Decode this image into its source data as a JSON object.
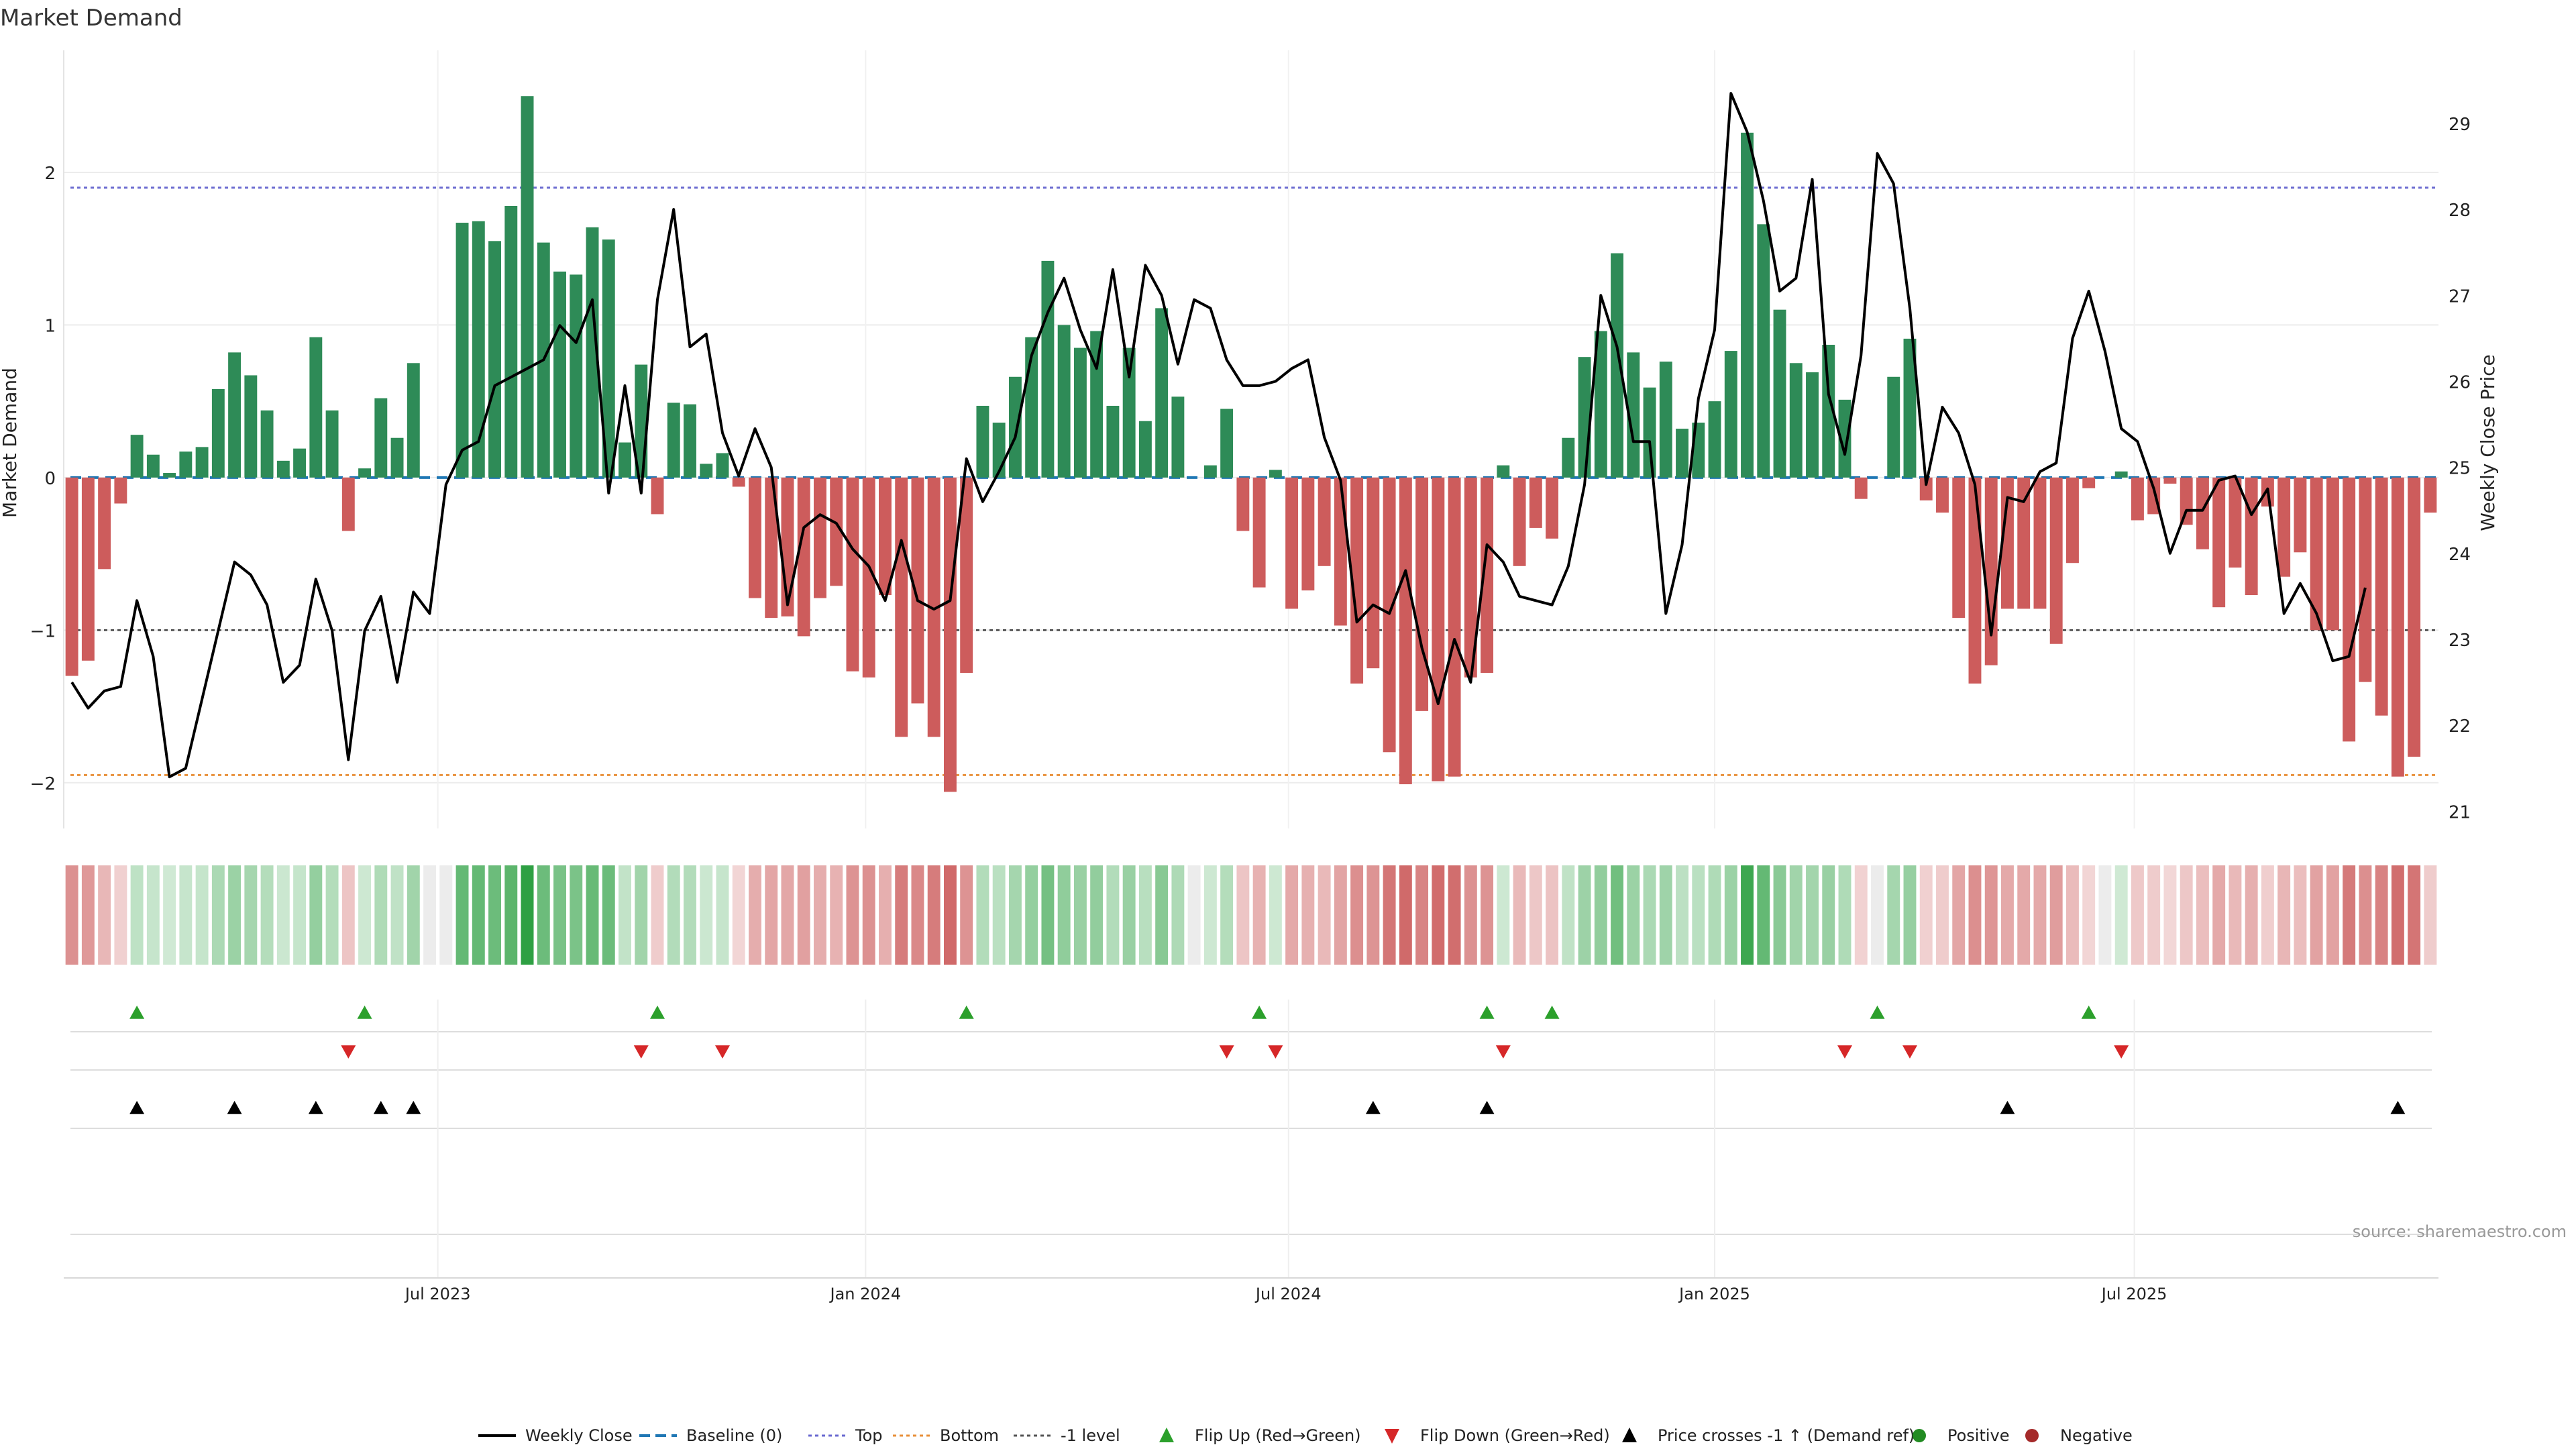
{
  "chart_data": {
    "type": "bar",
    "title": "Market Demand",
    "ylabel": "Market Demand",
    "y2label": "Weekly Close Price",
    "ylim": [
      -2.3,
      2.8
    ],
    "y2lim": [
      20.8,
      29.85
    ],
    "yticks": [
      2,
      1,
      0,
      -1,
      -2
    ],
    "yticklabels": [
      "2",
      "1",
      "0",
      "−1",
      "−2"
    ],
    "y2ticks": [
      29,
      28,
      27,
      26,
      25,
      24,
      23,
      22,
      21
    ],
    "xticks": [
      {
        "label": "Jul 2023",
        "index": 22.5
      },
      {
        "label": "Jan 2024",
        "index": 48.8
      },
      {
        "label": "Jul 2024",
        "index": 74.8
      },
      {
        "label": "Jan 2025",
        "index": 101.0
      },
      {
        "label": "Jul 2025",
        "index": 126.8
      }
    ],
    "levels": {
      "top": 1.9,
      "bottom": -1.95,
      "minus_one": -1.0,
      "baseline": 0
    },
    "demand": [
      -1.3,
      -1.2,
      -0.6,
      -0.17,
      0.28,
      0.15,
      0.03,
      0.17,
      0.2,
      0.58,
      0.82,
      0.67,
      0.44,
      0.11,
      0.19,
      0.92,
      0.44,
      -0.35,
      0.06,
      0.52,
      0.26,
      0.75,
      0,
      0,
      1.67,
      1.68,
      1.55,
      1.78,
      2.5,
      1.54,
      1.35,
      1.33,
      1.64,
      1.56,
      0.23,
      0.74,
      -0.24,
      0.49,
      0.48,
      0.09,
      0.16,
      -0.06,
      -0.79,
      -0.92,
      -0.91,
      -1.04,
      -0.79,
      -0.71,
      -1.27,
      -1.31,
      -0.77,
      -1.7,
      -1.48,
      -1.7,
      -2.06,
      -1.28,
      0.47,
      0.36,
      0.66,
      0.92,
      1.42,
      1.0,
      0.85,
      0.96,
      0.47,
      0.85,
      0.37,
      1.11,
      0.53,
      0,
      0.08,
      0.45,
      -0.35,
      -0.72,
      0.05,
      -0.86,
      -0.74,
      -0.58,
      -0.97,
      -1.35,
      -1.25,
      -1.8,
      -2.01,
      -1.53,
      -1.99,
      -1.96,
      -1.31,
      -1.28,
      0.08,
      -0.58,
      -0.33,
      -0.4,
      0.26,
      0.79,
      0.96,
      1.47,
      0.82,
      0.59,
      0.76,
      0.32,
      0.36,
      0.5,
      0.83,
      2.26,
      1.66,
      1.1,
      0.75,
      0.69,
      0.87,
      0.51,
      -0.14,
      0,
      0.66,
      0.91,
      -0.15,
      -0.23,
      -0.92,
      -1.35,
      -1.23,
      -0.86,
      -0.86,
      -0.86,
      -1.09,
      -0.56,
      -0.07,
      0,
      0.04,
      -0.28,
      -0.24,
      -0.04,
      -0.31,
      -0.47,
      -0.85,
      -0.59,
      -0.77,
      -0.19,
      -0.65,
      -0.49,
      -1.0,
      -1.0,
      -1.73,
      -1.34,
      -1.56,
      -1.96,
      -1.83,
      -0.23
    ],
    "close": [
      22.5,
      22.2,
      22.4,
      22.45,
      23.45,
      22.8,
      21.4,
      21.5,
      22.3,
      23.1,
      23.9,
      23.75,
      23.4,
      22.5,
      22.7,
      23.7,
      23.1,
      21.6,
      23.1,
      23.5,
      22.5,
      23.55,
      23.3,
      24.8,
      25.2,
      25.3,
      25.95,
      26.05,
      26.15,
      26.25,
      26.65,
      26.45,
      26.95,
      24.7,
      25.95,
      24.7,
      26.95,
      28.0,
      26.4,
      26.55,
      25.4,
      24.9,
      25.45,
      25.0,
      23.4,
      24.3,
      24.45,
      24.35,
      24.05,
      23.85,
      23.45,
      24.15,
      23.45,
      23.35,
      23.45,
      25.1,
      24.6,
      24.95,
      25.35,
      26.3,
      26.8,
      27.2,
      26.6,
      26.15,
      27.3,
      26.05,
      27.35,
      27.0,
      26.2,
      26.95,
      26.85,
      26.25,
      25.95,
      25.95,
      26.0,
      26.15,
      26.25,
      25.35,
      24.85,
      23.2,
      23.4,
      23.3,
      23.8,
      22.9,
      22.25,
      23.0,
      22.5,
      24.1,
      23.9,
      23.5,
      23.45,
      23.4,
      23.85,
      24.8,
      27.0,
      26.4,
      25.3,
      25.3,
      23.3,
      24.1,
      25.8,
      26.6,
      29.35,
      28.9,
      28.1,
      27.05,
      27.2,
      28.35,
      25.85,
      25.15,
      26.3,
      28.65,
      28.3,
      26.85,
      24.8,
      25.7,
      25.4,
      24.8,
      23.05,
      24.65,
      24.6,
      24.95,
      25.05,
      26.5,
      27.05,
      26.35,
      25.45,
      25.3,
      24.75,
      24.0,
      24.5,
      24.5,
      24.85,
      24.9,
      24.45,
      24.75,
      23.3,
      23.65,
      23.3,
      22.75,
      22.8,
      23.6
    ],
    "heat_strip": {
      "visible": true
    },
    "flip_up": [
      4,
      18,
      36,
      55,
      73,
      87,
      91,
      111,
      124
    ],
    "flip_down": [
      17,
      35,
      40,
      71,
      74,
      88,
      109,
      113,
      126
    ],
    "price_cross": [
      4,
      10,
      15,
      19,
      21,
      80,
      87,
      119,
      143
    ],
    "source": "source: sharemaestro.com",
    "legend": {
      "weekly_close": "Weekly Close",
      "baseline": "Baseline (0)",
      "top": "Top",
      "bottom": "Bottom",
      "minus_one": "-1 level",
      "flip_up": "Flip Up (Red→Green)",
      "flip_down": "Flip Down (Green→Red)",
      "price_cross": "Price crosses -1 ↑ (Demand ref)",
      "positive": "Positive",
      "negative": "Negative"
    },
    "colors": {
      "positive": "#2e8b57",
      "negative": "#cd5c5c",
      "close": "#000000",
      "top": "#6a6ad0",
      "bottom": "#e8903a",
      "minus_one": "#555555",
      "baseline": "#1f77b4",
      "flip_up": "#2ca02c",
      "flip_down": "#d62728",
      "positive_dot": "#228b22",
      "negative_dot": "#a52a2a"
    }
  }
}
